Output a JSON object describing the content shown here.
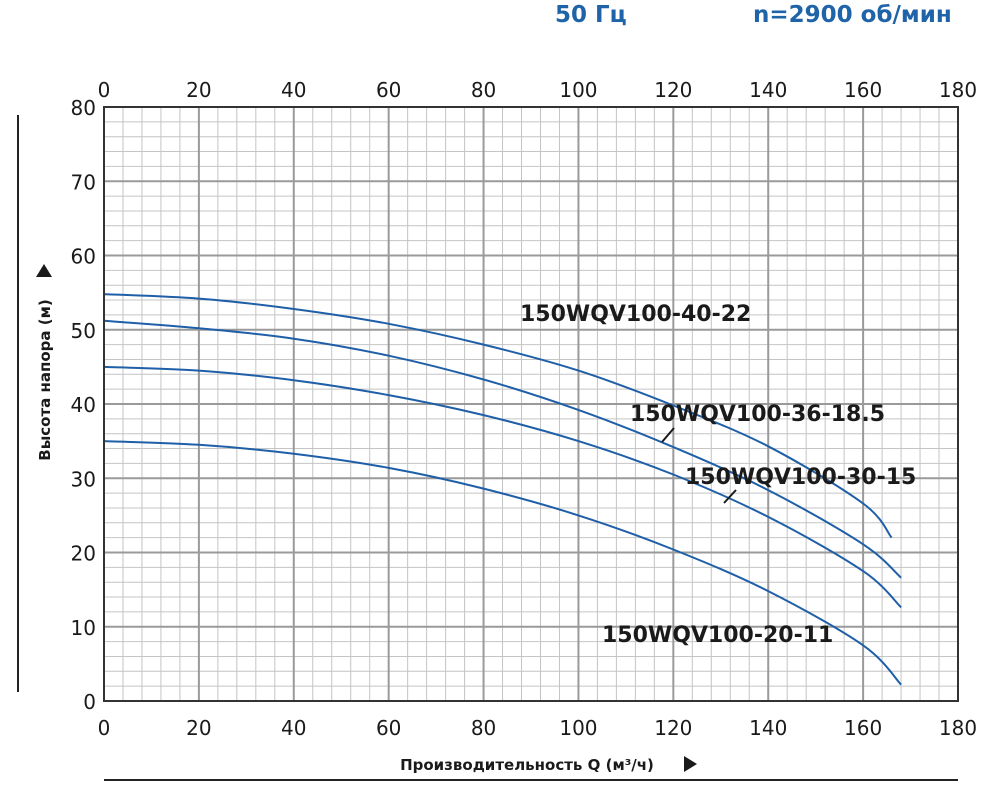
{
  "header": {
    "frequency": "50 Гц",
    "speed": "n=2900 об/мин"
  },
  "chart_data": {
    "type": "line",
    "title": "",
    "xlabel": "Производительность Q (м³/ч)",
    "ylabel": "Высота напора (м)",
    "xlim": [
      0,
      180
    ],
    "ylim": [
      0,
      80
    ],
    "x_ticks": [
      0,
      20,
      40,
      60,
      80,
      100,
      120,
      140,
      160,
      180
    ],
    "y_ticks": [
      0,
      10,
      20,
      30,
      40,
      50,
      60,
      70,
      80
    ],
    "x_tick_labels": [
      "0",
      "20",
      "40",
      "60",
      "80",
      "100",
      "120",
      "140",
      "160",
      "180"
    ],
    "y_tick_labels": [
      "0",
      "10",
      "20",
      "30",
      "40",
      "50",
      "60",
      "70",
      "80"
    ],
    "grid": true,
    "legend": "none",
    "series_color": "#1f5fa8",
    "series": [
      {
        "name": "150WQV100-40-22",
        "x": [
          0,
          20,
          40,
          60,
          80,
          100,
          120,
          140,
          160,
          166
        ],
        "y": [
          54.8,
          54.2,
          52.8,
          50.8,
          48.0,
          44.5,
          39.8,
          34.3,
          26.6,
          22.0
        ]
      },
      {
        "name": "150WQV100-36-18.5",
        "x": [
          0,
          20,
          40,
          60,
          80,
          100,
          120,
          140,
          160,
          168
        ],
        "y": [
          51.2,
          50.2,
          48.8,
          46.5,
          43.3,
          39.2,
          34.2,
          28.4,
          21.1,
          16.6
        ]
      },
      {
        "name": "150WQV100-30-15",
        "x": [
          0,
          20,
          40,
          60,
          80,
          100,
          120,
          140,
          160,
          168
        ],
        "y": [
          45.0,
          44.5,
          43.2,
          41.2,
          38.5,
          35.0,
          30.5,
          24.8,
          17.5,
          12.6
        ]
      },
      {
        "name": "150WQV100-20-11",
        "x": [
          0,
          20,
          40,
          60,
          80,
          100,
          120,
          140,
          160,
          168
        ],
        "y": [
          35.0,
          34.5,
          33.3,
          31.4,
          28.6,
          25.0,
          20.4,
          14.8,
          7.5,
          2.2
        ]
      }
    ]
  }
}
